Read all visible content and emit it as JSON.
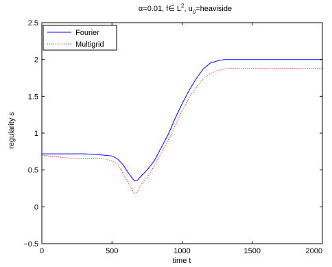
{
  "chart_data": {
    "type": "line",
    "title_parts": {
      "alpha": "α",
      "alpha_eq": "=0.01, f∈ L",
      "sup": "2",
      "mid": ", u",
      "sub": "0",
      "end": "=heaviside"
    },
    "xlabel": "time t",
    "ylabel": "regularity s",
    "xlim": [
      0,
      2000
    ],
    "ylim": [
      -0.5,
      2.5
    ],
    "xticks": [
      0,
      500,
      1000,
      1500,
      2000
    ],
    "xtick_labels": [
      "0",
      "500",
      "1000",
      "1500",
      "2000"
    ],
    "yticks": [
      -0.5,
      0,
      0.5,
      1,
      1.5,
      2,
      2.5
    ],
    "ytick_labels": [
      "−0.5",
      "0",
      "0.5",
      "1",
      "1.5",
      "2",
      "2.5"
    ],
    "grid": false,
    "legend_placement": "top-left",
    "series": [
      {
        "name": "Fourier",
        "color": "#0000ff",
        "style": "solid",
        "x": [
          0,
          100,
          200,
          300,
          400,
          450,
          500,
          540,
          580,
          610,
          640,
          660,
          680,
          700,
          750,
          800,
          850,
          900,
          950,
          1000,
          1050,
          1100,
          1150,
          1200,
          1250,
          1300,
          1350,
          1400,
          1500,
          1600,
          1700,
          1800,
          1900,
          2000
        ],
        "y": [
          0.72,
          0.72,
          0.72,
          0.72,
          0.71,
          0.7,
          0.69,
          0.65,
          0.57,
          0.48,
          0.4,
          0.35,
          0.36,
          0.4,
          0.5,
          0.62,
          0.8,
          0.98,
          1.2,
          1.4,
          1.58,
          1.74,
          1.87,
          1.95,
          1.98,
          2.0,
          2.0,
          2.0,
          2.0,
          2.0,
          2.0,
          2.0,
          2.0,
          2.0
        ]
      },
      {
        "name": "Multigrid",
        "color": "#ff0000",
        "style": "dotted",
        "x": [
          0,
          100,
          200,
          300,
          400,
          450,
          500,
          540,
          580,
          610,
          640,
          660,
          680,
          700,
          750,
          800,
          850,
          900,
          950,
          1000,
          1050,
          1100,
          1150,
          1200,
          1250,
          1300,
          1350,
          1400,
          1500,
          1600,
          1700,
          1800,
          1900,
          2000
        ],
        "y": [
          0.7,
          0.68,
          0.66,
          0.66,
          0.66,
          0.65,
          0.62,
          0.58,
          0.45,
          0.35,
          0.25,
          0.18,
          0.2,
          0.28,
          0.4,
          0.55,
          0.72,
          0.9,
          1.1,
          1.3,
          1.48,
          1.62,
          1.74,
          1.81,
          1.85,
          1.87,
          1.88,
          1.88,
          1.88,
          1.88,
          1.88,
          1.88,
          1.88,
          1.88
        ]
      }
    ]
  }
}
